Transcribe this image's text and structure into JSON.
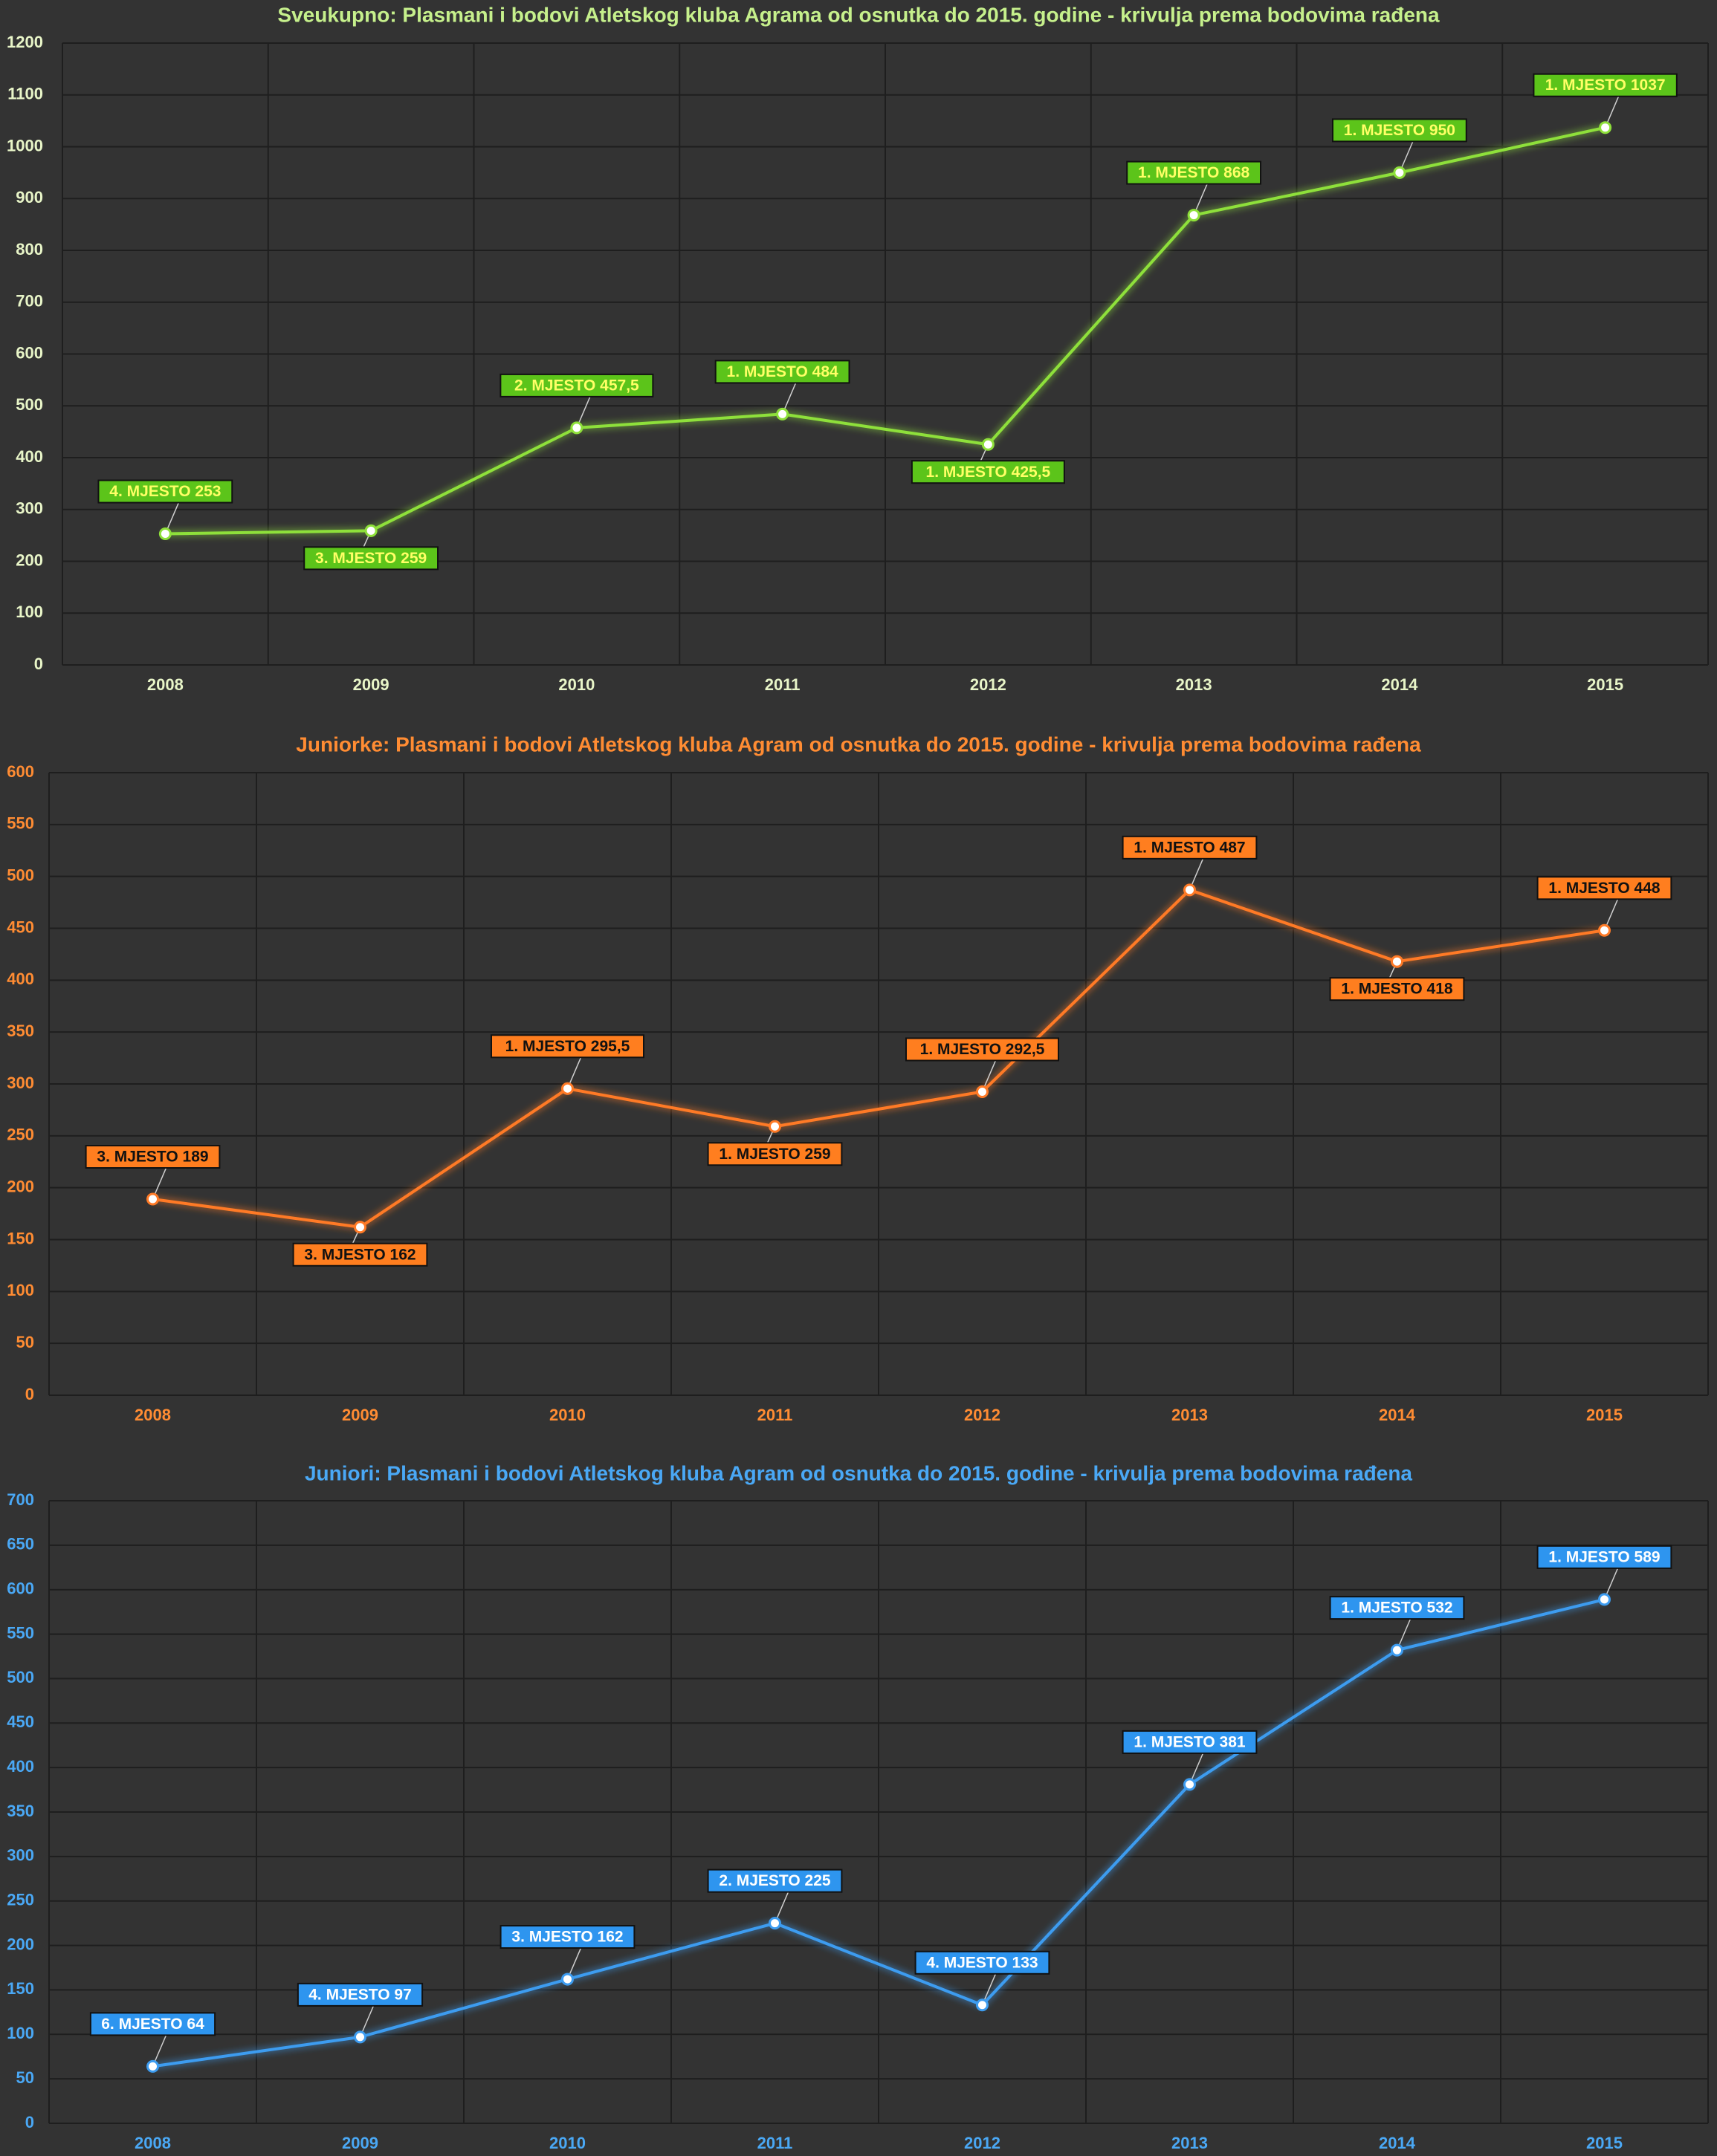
{
  "chart_data": [
    {
      "type": "line",
      "title": "Sveukupno: Plasmani i bodovi Atletskog kluba Agrama od osnutka do 2015. godine - krivulja prema bodovima rađena",
      "categories": [
        "2008",
        "2009",
        "2010",
        "2011",
        "2012",
        "2013",
        "2014",
        "2015"
      ],
      "values": [
        253,
        259,
        457.5,
        484,
        425.5,
        868,
        950,
        1037
      ],
      "labels": [
        "4. MJESTO 253",
        "3. MJESTO 259",
        "2. MJESTO 457,5",
        "1. MJESTO 484",
        "1. MJESTO 425,5",
        "1. MJESTO 868",
        "1. MJESTO 950",
        "1. MJESTO 1037"
      ],
      "label_position": [
        "above",
        "below",
        "above",
        "above",
        "below",
        "above",
        "above",
        "above"
      ],
      "y_ticks": [
        "0",
        "100",
        "200",
        "300",
        "400",
        "500",
        "600",
        "700",
        "800",
        "900",
        "1000",
        "1100",
        "1200"
      ],
      "ylim": [
        0,
        1200
      ],
      "grid": true,
      "xlabel": "",
      "ylabel": "",
      "colors": {
        "line": "#8ee03a",
        "label_bg": "#5cc41a",
        "label_text": "#ffff66",
        "tick_text": "#e8f5c8",
        "title_text": "#c6f08c"
      }
    },
    {
      "type": "line",
      "title": "Juniorke: Plasmani i bodovi Atletskog kluba Agram od osnutka do 2015. godine - krivulja prema bodovima rađena",
      "categories": [
        "2008",
        "2009",
        "2010",
        "2011",
        "2012",
        "2013",
        "2014",
        "2015"
      ],
      "values": [
        189,
        162,
        295.5,
        259,
        292.5,
        487,
        418,
        448
      ],
      "labels": [
        "3. MJESTO 189",
        "3. MJESTO 162",
        "1. MJESTO 295,5",
        "1. MJESTO 259",
        "1. MJESTO 292,5",
        "1. MJESTO 487",
        "1. MJESTO 418",
        "1. MJESTO 448"
      ],
      "label_position": [
        "above",
        "below",
        "above",
        "below",
        "above",
        "above",
        "below",
        "above"
      ],
      "y_ticks": [
        "0",
        "50",
        "100",
        "150",
        "200",
        "250",
        "300",
        "350",
        "400",
        "450",
        "500",
        "550",
        "600"
      ],
      "ylim": [
        0,
        600
      ],
      "grid": true,
      "xlabel": "",
      "ylabel": "",
      "colors": {
        "line": "#ff7a26",
        "label_bg": "#ff7e1f",
        "label_text": "#111111",
        "tick_text": "#ff8c33",
        "title_text": "#ff8c33"
      }
    },
    {
      "type": "line",
      "title": "Juniori: Plasmani i bodovi Atletskog kluba Agram od osnutka do 2015. godine - krivulja prema bodovima rađena",
      "categories": [
        "2008",
        "2009",
        "2010",
        "2011",
        "2012",
        "2013",
        "2014",
        "2015"
      ],
      "values": [
        64,
        97,
        162,
        225,
        133,
        381,
        532,
        589
      ],
      "labels": [
        "6. MJESTO 64",
        "4. MJESTO 97",
        "3. MJESTO 162",
        "2. MJESTO 225",
        "4. MJESTO 133",
        "1. MJESTO 381",
        "1. MJESTO 532",
        "1. MJESTO 589"
      ],
      "label_position": [
        "above",
        "above",
        "above",
        "above",
        "above",
        "above",
        "above",
        "above"
      ],
      "y_ticks": [
        "0",
        "50",
        "100",
        "150",
        "200",
        "250",
        "300",
        "350",
        "400",
        "450",
        "500",
        "550",
        "600",
        "650",
        "700"
      ],
      "ylim": [
        0,
        700
      ],
      "grid": true,
      "xlabel": "",
      "ylabel": "",
      "colors": {
        "line": "#3d9cf0",
        "label_bg": "#2e95ef",
        "label_text": "#ffffff",
        "tick_text": "#4aa8f5",
        "title_text": "#4aa8f5"
      }
    }
  ]
}
